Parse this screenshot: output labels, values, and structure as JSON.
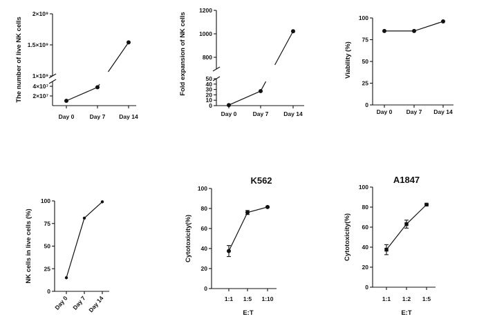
{
  "chart_data": [
    {
      "id": "a",
      "type": "line",
      "title": "",
      "xlabel": "",
      "ylabel": "The number of live NK cells",
      "categories": [
        "Day  0",
        "Day 7",
        "Day 14"
      ],
      "axis_break": {
        "lower_max": 40000000,
        "upper_min": 1000000000
      },
      "lower": {
        "ylim": [
          0,
          50000000
        ],
        "ticks": [
          {
            "value": 20000000,
            "label": "2×10⁷"
          },
          {
            "value": 40000000,
            "label": "4×10⁷"
          }
        ]
      },
      "upper": {
        "ylim": [
          1000000000,
          2000000000
        ],
        "ticks": [
          {
            "value": 1000000000,
            "label": "1×10⁹"
          },
          {
            "value": 1500000000,
            "label": "1.5×10⁹"
          },
          {
            "value": 2000000000,
            "label": "2×10⁹"
          }
        ]
      },
      "values": [
        10000000,
        38000000,
        1540000000
      ]
    },
    {
      "id": "b",
      "type": "line",
      "title": "",
      "xlabel": "",
      "ylabel": "Fold expansion of NK cells",
      "categories": [
        "Day 0",
        "Day 7",
        "Day 14"
      ],
      "axis_break": {
        "lower_max": 50,
        "upper_min": 800
      },
      "lower": {
        "ylim": [
          0,
          50
        ],
        "ticks": [
          {
            "value": 0,
            "label": "0"
          },
          {
            "value": 10,
            "label": "10"
          },
          {
            "value": 20,
            "label": "20"
          },
          {
            "value": 30,
            "label": "30"
          },
          {
            "value": 40,
            "label": "40"
          },
          {
            "value": 50,
            "label": "50"
          }
        ]
      },
      "upper": {
        "ylim": [
          700,
          1200
        ],
        "ticks": [
          {
            "value": 800,
            "label": "800"
          },
          {
            "value": 1000,
            "label": "1000"
          },
          {
            "value": 1200,
            "label": "1200"
          }
        ]
      },
      "values": [
        1,
        27,
        1022
      ]
    },
    {
      "id": "c",
      "type": "line",
      "title": "",
      "xlabel": "",
      "ylabel": "Viability (%)",
      "categories": [
        "Day 0",
        "Day 7",
        "Day 14"
      ],
      "ylim": [
        0,
        100
      ],
      "yticks": [
        0,
        25,
        50,
        75,
        100
      ],
      "values": [
        85,
        85,
        96
      ]
    },
    {
      "id": "d",
      "type": "line",
      "title": "",
      "xlabel": "",
      "ylabel": "NK cells in live cells (%)",
      "categories": [
        "Day 0",
        "Day 7",
        "Day 14"
      ],
      "ylim": [
        0,
        100
      ],
      "yticks": [
        0,
        25,
        50,
        75,
        100
      ],
      "values": [
        15,
        81,
        99
      ]
    },
    {
      "id": "e",
      "type": "line",
      "title": "K562",
      "xlabel": "E:T",
      "ylabel": "Cytotoxicity(%)",
      "categories": [
        "1:1",
        "1:5",
        "1:10"
      ],
      "ylim": [
        0,
        100
      ],
      "yticks": [
        0,
        20,
        40,
        60,
        80,
        100
      ],
      "values": [
        37.5,
        76,
        81.5
      ],
      "errors": [
        5.5,
        2,
        0.5
      ]
    },
    {
      "id": "f",
      "type": "line",
      "title": "A1847",
      "xlabel": "E:T",
      "ylabel": "Cytotoxicity(%)",
      "categories": [
        "1:1",
        "1:2",
        "1:5"
      ],
      "ylim": [
        0,
        100
      ],
      "yticks": [
        0,
        20,
        40,
        60,
        80,
        100
      ],
      "values": [
        37.5,
        63,
        82.5
      ],
      "errors": [
        5,
        4,
        0.5
      ]
    }
  ]
}
